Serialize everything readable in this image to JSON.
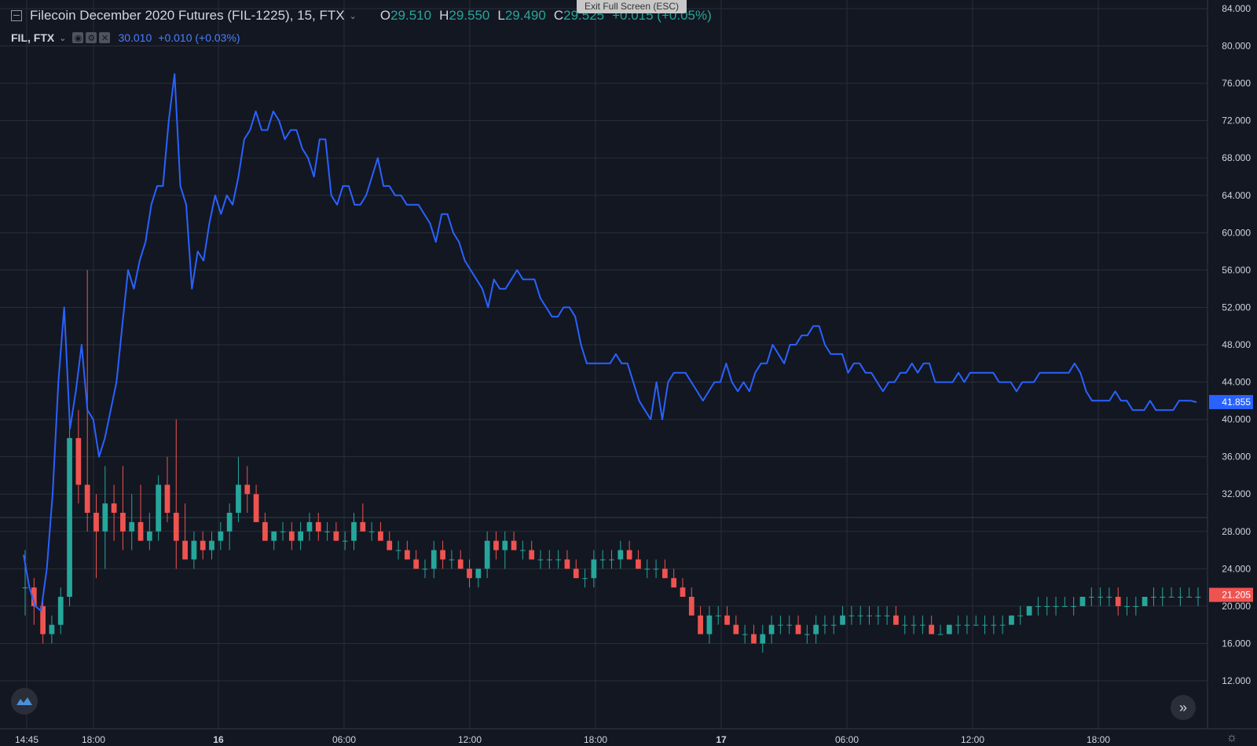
{
  "legend": {
    "symbol_title": "Filecoin December 2020 Futures (FIL-1225), 15, FTX",
    "ohlc": [
      {
        "key": "O",
        "value": "29.510"
      },
      {
        "key": "H",
        "value": "29.550"
      },
      {
        "key": "L",
        "value": "29.490"
      },
      {
        "key": "C",
        "value": "29.525"
      }
    ],
    "change": "+0.015 (+0.05%)",
    "sub_title": "FIL, FTX",
    "sub_value": "30.010",
    "sub_change": "+0.010 (+0.03%)"
  },
  "banner": "Exit Full Screen (ESC)",
  "icons": {
    "collapse": "collapse-icon",
    "chevron": "chevron-down-icon",
    "eye": "eye-icon",
    "gear": "gear-icon",
    "close": "close-icon",
    "logo": "tradingview-logo-icon",
    "scroll": "scroll-to-realtime-icon",
    "settings": "settings-icon"
  },
  "colors": {
    "background": "#131722",
    "grid": "#2a2e39",
    "up": "#26a69a",
    "down": "#ef5350",
    "line": "#2962ff"
  },
  "chart_data": {
    "type": "candlestick+line",
    "ylim": [
      10,
      84
    ],
    "y_ticks": [
      "84.000",
      "80.000",
      "76.000",
      "72.000",
      "68.000",
      "64.000",
      "60.000",
      "56.000",
      "52.000",
      "48.000",
      "44.000",
      "40.000",
      "36.000",
      "32.000",
      "28.000",
      "24.000",
      "20.000",
      "16.000",
      "12.000"
    ],
    "x_ticks": [
      "14:45",
      "18:00",
      "16",
      "06:00",
      "12:00",
      "18:00",
      "17",
      "06:00",
      "12:00",
      "18:00"
    ],
    "price_labels": [
      {
        "series": "FIL, FTX",
        "value": "41.855",
        "color": "#2962ff"
      },
      {
        "series": "FIL-1225",
        "value": "21.205",
        "color": "#ef5350"
      }
    ],
    "horizontal_line": 29.5,
    "line_series": {
      "name": "FIL, FTX",
      "values": [
        25.5,
        22,
        20,
        19.5,
        24,
        32,
        44,
        52,
        39,
        43,
        48,
        41,
        40,
        36,
        38,
        41,
        44,
        50,
        56,
        54,
        57,
        59,
        63,
        65,
        65,
        72,
        77,
        65,
        63,
        54,
        58,
        57,
        61,
        64,
        62,
        64,
        63,
        66,
        70,
        71,
        73,
        71,
        71,
        73,
        72,
        70,
        71,
        71,
        69,
        68,
        66,
        70,
        70,
        64,
        63,
        65,
        65,
        63,
        63,
        64,
        66,
        68,
        65,
        65,
        64,
        64,
        63,
        63,
        63,
        62,
        61,
        59,
        62,
        62,
        60,
        59,
        57,
        56,
        55,
        54,
        52,
        55,
        54,
        54,
        55,
        56,
        55,
        55,
        55,
        53,
        52,
        51,
        51,
        52,
        52,
        51,
        48,
        46,
        46,
        46,
        46,
        46,
        47,
        46,
        46,
        44,
        42,
        41,
        40,
        44,
        40,
        44,
        45,
        45,
        45,
        44,
        43,
        42,
        43,
        44,
        44,
        46,
        44,
        43,
        44,
        43,
        45,
        46,
        46,
        48,
        47,
        46,
        48,
        48,
        49,
        49,
        50,
        50,
        48,
        47,
        47,
        47,
        45,
        46,
        46,
        45,
        45,
        44,
        43,
        44,
        44,
        45,
        45,
        46,
        45,
        46,
        46,
        44,
        44,
        44,
        44,
        45,
        44,
        45,
        45,
        45,
        45,
        45,
        44,
        44,
        44,
        43,
        44,
        44,
        44,
        45,
        45,
        45,
        45,
        45,
        45,
        46,
        45,
        43,
        42,
        42,
        42,
        42,
        43,
        42,
        42,
        41,
        41,
        41,
        42,
        41,
        41,
        41,
        41,
        42,
        42,
        42,
        41.855
      ]
    },
    "candles": [
      [
        22,
        26,
        19,
        22
      ],
      [
        22,
        23,
        18,
        20
      ],
      [
        20,
        21,
        16,
        17
      ],
      [
        17,
        19,
        16,
        18
      ],
      [
        18,
        22,
        17,
        21
      ],
      [
        21,
        41,
        20,
        38
      ],
      [
        38,
        41,
        31,
        33
      ],
      [
        33,
        56,
        28,
        30
      ],
      [
        30,
        32,
        23,
        28
      ],
      [
        28,
        35,
        24,
        31
      ],
      [
        31,
        33,
        27,
        30
      ],
      [
        30,
        35,
        26,
        28
      ],
      [
        28,
        32,
        26,
        29
      ],
      [
        29,
        33,
        27,
        27
      ],
      [
        27,
        30,
        26,
        28
      ],
      [
        28,
        34,
        27,
        33
      ],
      [
        33,
        36,
        29,
        30
      ],
      [
        30,
        40,
        24,
        27
      ],
      [
        27,
        31,
        25,
        25
      ],
      [
        25,
        28,
        24,
        27
      ],
      [
        27,
        28,
        25,
        26
      ],
      [
        26,
        28,
        25,
        27
      ],
      [
        27,
        29,
        26,
        28
      ],
      [
        28,
        31,
        26,
        30
      ],
      [
        30,
        36,
        29,
        33
      ],
      [
        33,
        35,
        30,
        32
      ],
      [
        32,
        33,
        29,
        29
      ],
      [
        29,
        30,
        27,
        27
      ],
      [
        27,
        28,
        26,
        28
      ],
      [
        28,
        29,
        27,
        28
      ],
      [
        28,
        29,
        26,
        27
      ],
      [
        27,
        29,
        26,
        28
      ],
      [
        28,
        30,
        27,
        29
      ],
      [
        29,
        30,
        27,
        28
      ],
      [
        28,
        29,
        27,
        28
      ],
      [
        28,
        29,
        27,
        27
      ],
      [
        27,
        28,
        26,
        27
      ],
      [
        27,
        30,
        26,
        29
      ],
      [
        29,
        31,
        28,
        28
      ],
      [
        28,
        29,
        27,
        28
      ],
      [
        28,
        29,
        27,
        27
      ],
      [
        27,
        28,
        26,
        26
      ],
      [
        26,
        27,
        25,
        26
      ],
      [
        26,
        27,
        25,
        25
      ],
      [
        25,
        26,
        24,
        24
      ],
      [
        24,
        25,
        23,
        24
      ],
      [
        24,
        27,
        23,
        26
      ],
      [
        26,
        27,
        24,
        25
      ],
      [
        25,
        26,
        24,
        25
      ],
      [
        25,
        26,
        24,
        24
      ],
      [
        24,
        25,
        22,
        23
      ],
      [
        23,
        24,
        22,
        24
      ],
      [
        24,
        28,
        23,
        27
      ],
      [
        27,
        28,
        25,
        26
      ],
      [
        26,
        28,
        24,
        27
      ],
      [
        27,
        28,
        26,
        26
      ],
      [
        26,
        27,
        25,
        26
      ],
      [
        26,
        27,
        25,
        25
      ],
      [
        25,
        26,
        24,
        25
      ],
      [
        25,
        26,
        24,
        25
      ],
      [
        25,
        26,
        24,
        25
      ],
      [
        25,
        26,
        24,
        24
      ],
      [
        24,
        25,
        23,
        23
      ],
      [
        23,
        24,
        22,
        23
      ],
      [
        23,
        26,
        22,
        25
      ],
      [
        25,
        26,
        24,
        25
      ],
      [
        25,
        26,
        24,
        25
      ],
      [
        25,
        27,
        24,
        26
      ],
      [
        26,
        27,
        25,
        25
      ],
      [
        25,
        26,
        24,
        24
      ],
      [
        24,
        25,
        23,
        24
      ],
      [
        24,
        25,
        23,
        24
      ],
      [
        24,
        25,
        23,
        23
      ],
      [
        23,
        24,
        22,
        22
      ],
      [
        22,
        23,
        21,
        21
      ],
      [
        21,
        22,
        19,
        19
      ],
      [
        19,
        20,
        17,
        17
      ],
      [
        17,
        20,
        16,
        19
      ],
      [
        19,
        20,
        18,
        19
      ],
      [
        19,
        20,
        18,
        18
      ],
      [
        18,
        19,
        17,
        17
      ],
      [
        17,
        18,
        16,
        17
      ],
      [
        17,
        18,
        16,
        16
      ],
      [
        16,
        18,
        15,
        17
      ],
      [
        17,
        19,
        16,
        18
      ],
      [
        18,
        19,
        17,
        18
      ],
      [
        18,
        19,
        17,
        18
      ],
      [
        18,
        19,
        17,
        17
      ],
      [
        17,
        18,
        16,
        17
      ],
      [
        17,
        19,
        16,
        18
      ],
      [
        18,
        19,
        17,
        18
      ],
      [
        18,
        19,
        17,
        18
      ],
      [
        18,
        20,
        18,
        19
      ],
      [
        19,
        20,
        18,
        19
      ],
      [
        19,
        20,
        18,
        19
      ],
      [
        19,
        20,
        18,
        19
      ],
      [
        19,
        20,
        18,
        19
      ],
      [
        19,
        20,
        18,
        19
      ],
      [
        19,
        20,
        18,
        18
      ],
      [
        18,
        19,
        17,
        18
      ],
      [
        18,
        19,
        17,
        18
      ],
      [
        18,
        19,
        17,
        18
      ],
      [
        18,
        19,
        17,
        17
      ],
      [
        17,
        18,
        17,
        17
      ],
      [
        17,
        18,
        17,
        18
      ],
      [
        18,
        19,
        17,
        18
      ],
      [
        18,
        19,
        17,
        18
      ],
      [
        18,
        19,
        18,
        18
      ],
      [
        18,
        19,
        17,
        18
      ],
      [
        18,
        19,
        17,
        18
      ],
      [
        18,
        19,
        17,
        18
      ],
      [
        18,
        19,
        18,
        19
      ],
      [
        19,
        20,
        18,
        19
      ],
      [
        19,
        20,
        19,
        20
      ],
      [
        20,
        21,
        19,
        20
      ],
      [
        20,
        21,
        19,
        20
      ],
      [
        20,
        21,
        19,
        20
      ],
      [
        20,
        21,
        20,
        20
      ],
      [
        20,
        21,
        19,
        20
      ],
      [
        20,
        21,
        20,
        21
      ],
      [
        21,
        22,
        20,
        21
      ],
      [
        21,
        22,
        20,
        21
      ],
      [
        21,
        22,
        20,
        21
      ],
      [
        21,
        22,
        19,
        20
      ],
      [
        20,
        21,
        19,
        20
      ],
      [
        20,
        21,
        19,
        20
      ],
      [
        20,
        21,
        20,
        21
      ],
      [
        21,
        22,
        20,
        21
      ],
      [
        21,
        22,
        20,
        21
      ],
      [
        21,
        22,
        21,
        21
      ],
      [
        21,
        22,
        20,
        21
      ],
      [
        21,
        22,
        21,
        21
      ],
      [
        21,
        22,
        20,
        21
      ]
    ]
  }
}
